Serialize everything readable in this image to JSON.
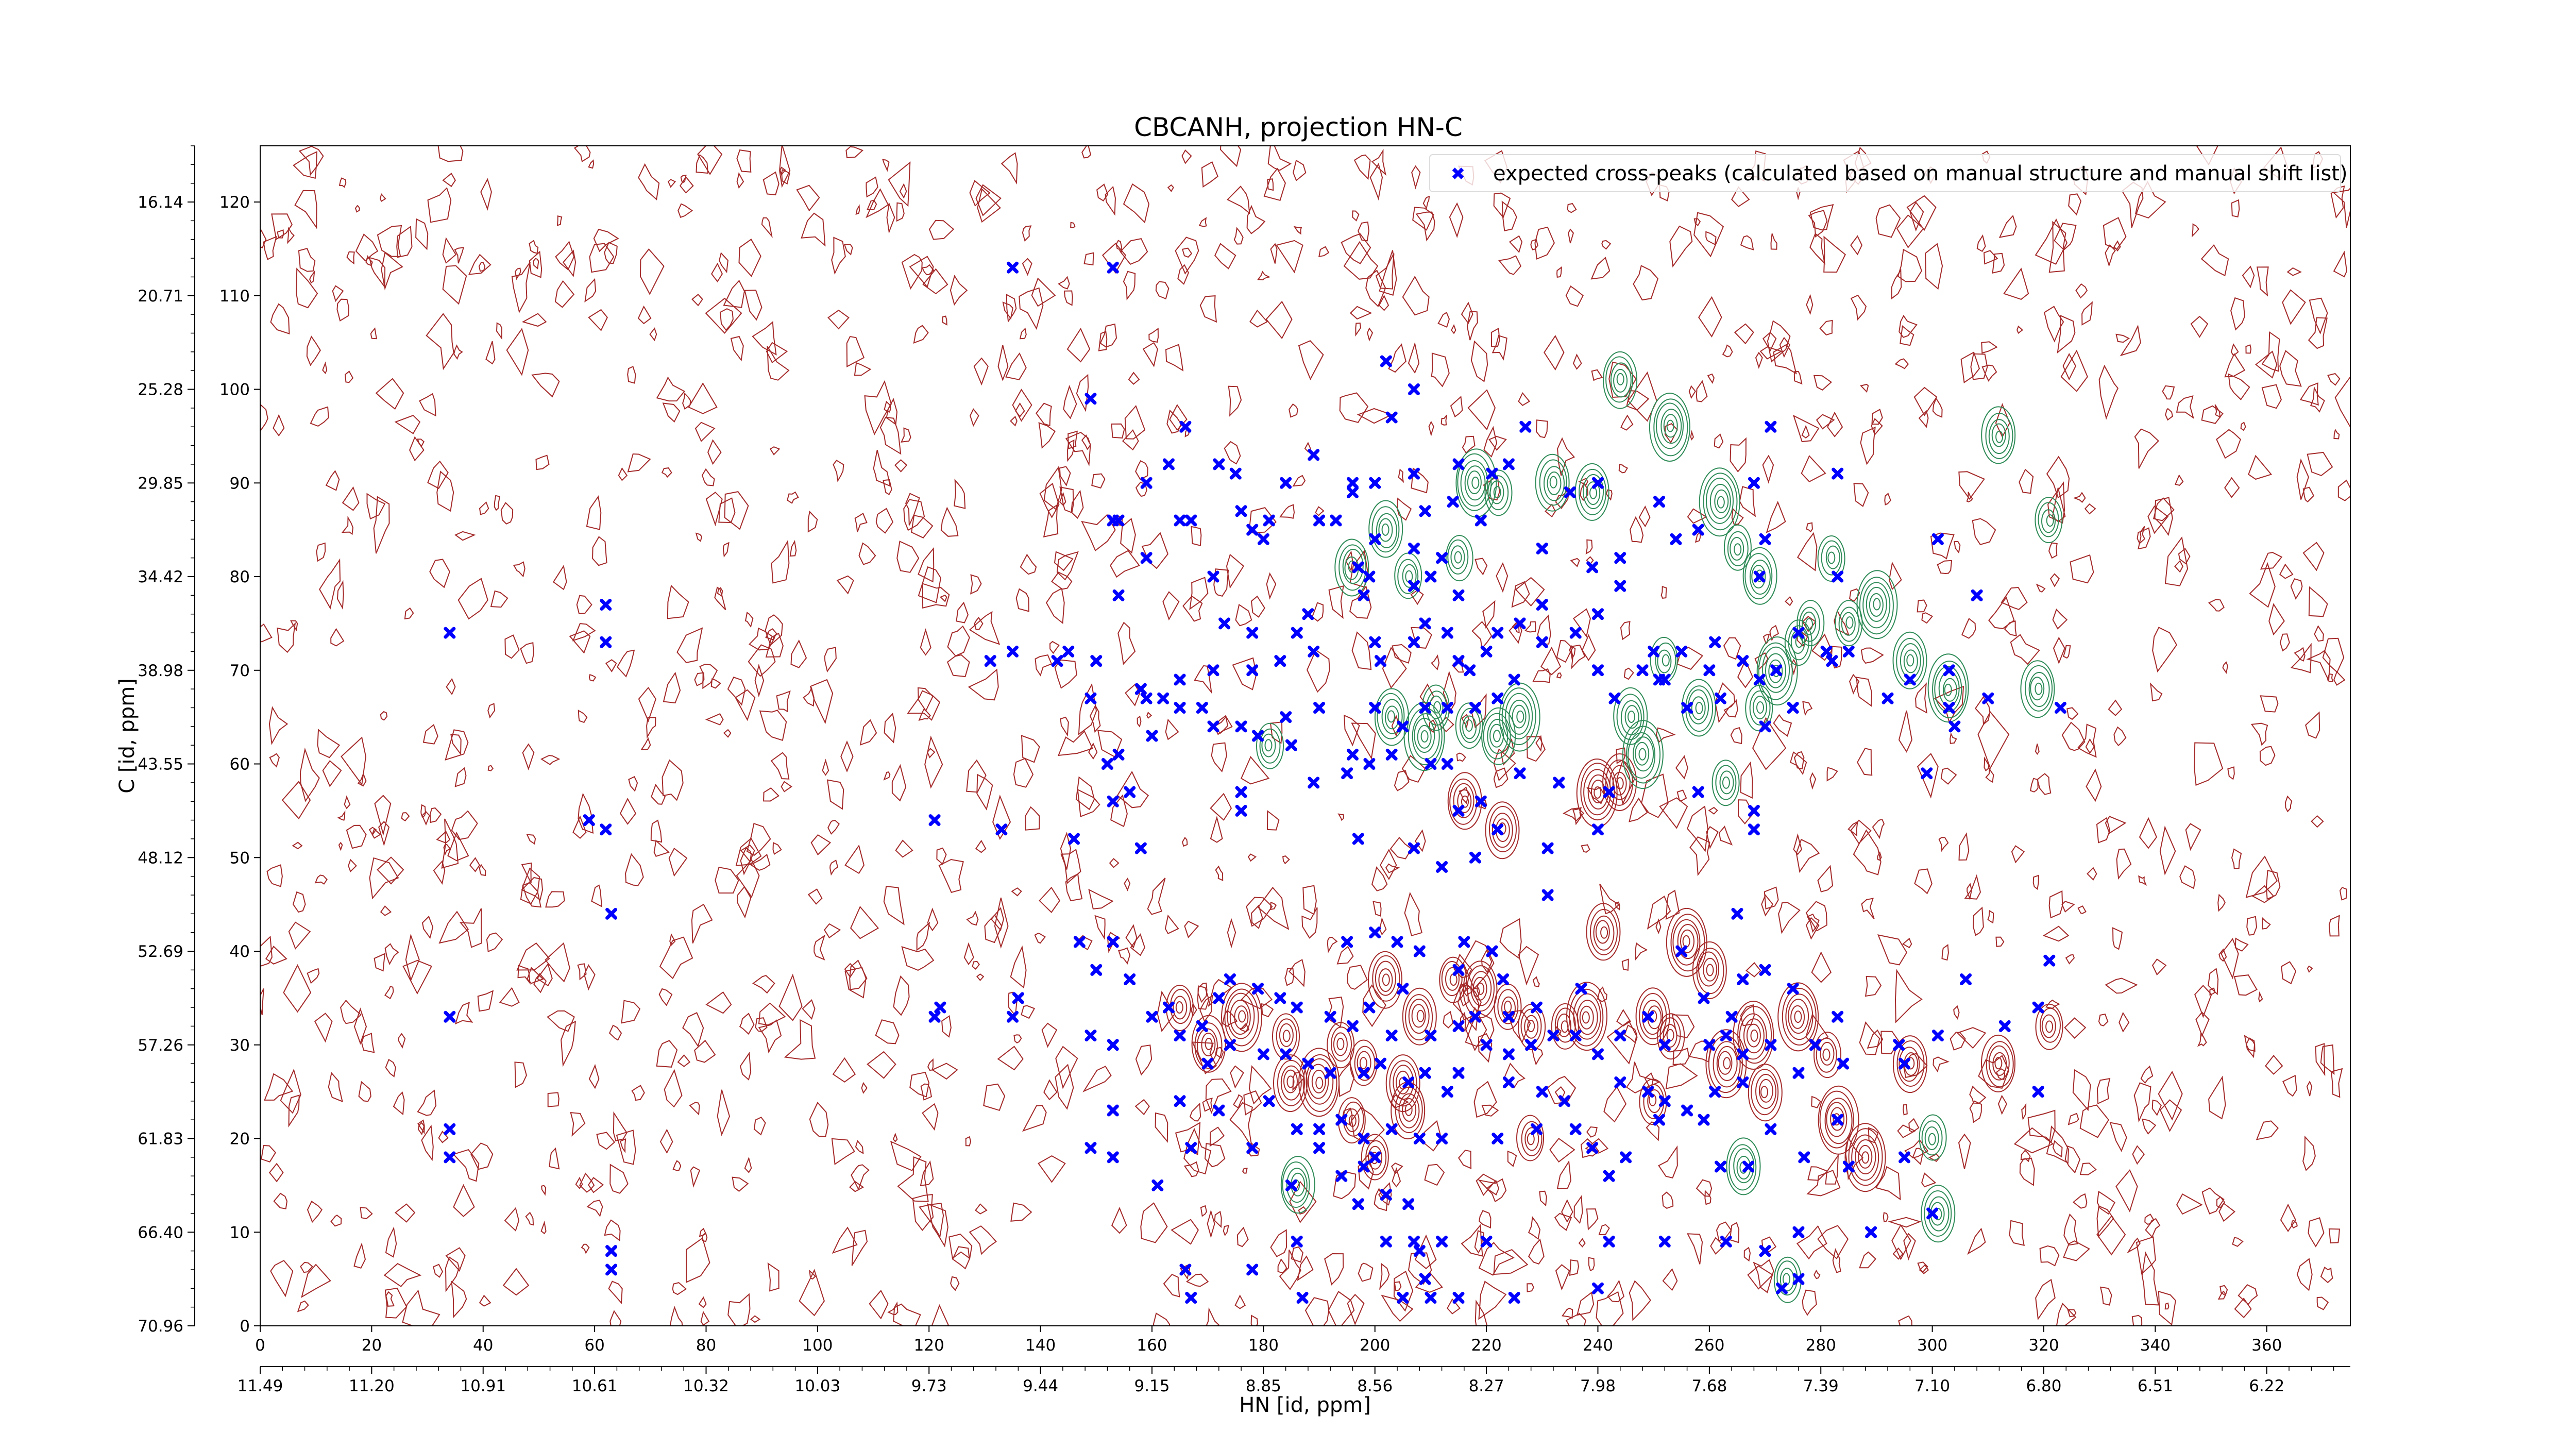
{
  "chart_data": {
    "type": "scatter",
    "title": "CBCANH, projection HN-C",
    "xlabel": "HN [id, ppm]",
    "ylabel": "C [id, ppm]",
    "x_index_range": [
      0,
      375
    ],
    "y_index_range": [
      0,
      126
    ],
    "x_index_ticks": [
      "0",
      "20",
      "40",
      "60",
      "80",
      "100",
      "120",
      "140",
      "160",
      "180",
      "200",
      "220",
      "240",
      "260",
      "280",
      "300",
      "320",
      "340",
      "360"
    ],
    "x_ppm_ticks": [
      "11.49",
      "11.20",
      "10.91",
      "10.61",
      "10.32",
      "10.03",
      "9.73",
      "9.44",
      "9.15",
      "8.85",
      "8.56",
      "8.27",
      "7.98",
      "7.68",
      "7.39",
      "7.10",
      "6.80",
      "6.51",
      "6.22"
    ],
    "y_index_ticks": [
      "0",
      "10",
      "20",
      "30",
      "40",
      "50",
      "60",
      "70",
      "80",
      "90",
      "100",
      "110",
      "120"
    ],
    "y_ppm_ticks": [
      "70.96",
      "66.40",
      "61.83",
      "57.26",
      "52.69",
      "48.12",
      "43.55",
      "38.98",
      "34.42",
      "29.85",
      "25.28",
      "20.71",
      "16.14"
    ],
    "legend": {
      "label": "expected cross-peaks (calculated based on manual structure and manual shift list)",
      "placement": "top-right"
    },
    "colors": {
      "points": "#0000ff",
      "positive_contours": "#a52a2a",
      "negative_contours": "#2e8b57",
      "axis": "#000000"
    },
    "contours": {
      "positive_peaks": [
        [
          216,
          56
        ],
        [
          223,
          53
        ],
        [
          240,
          57
        ],
        [
          244,
          58
        ],
        [
          234,
          32
        ],
        [
          238,
          33
        ],
        [
          250,
          33
        ],
        [
          253,
          31
        ],
        [
          263,
          28
        ],
        [
          270,
          25
        ],
        [
          276,
          33
        ],
        [
          281,
          29
        ],
        [
          283,
          22
        ],
        [
          288,
          18
        ],
        [
          296,
          28
        ],
        [
          312,
          28
        ],
        [
          321,
          32
        ],
        [
          241,
          42
        ],
        [
          256,
          41
        ],
        [
          260,
          38
        ],
        [
          268,
          31
        ],
        [
          202,
          37
        ],
        [
          208,
          33
        ],
        [
          214,
          37
        ],
        [
          219,
          36
        ],
        [
          224,
          34
        ],
        [
          228,
          32
        ],
        [
          194,
          30
        ],
        [
          198,
          28
        ],
        [
          205,
          26
        ],
        [
          184,
          31
        ],
        [
          190,
          26
        ],
        [
          196,
          22
        ],
        [
          200,
          18
        ],
        [
          206,
          23
        ],
        [
          176,
          33
        ],
        [
          170,
          30
        ],
        [
          165,
          34
        ],
        [
          185,
          26
        ],
        [
          228,
          20
        ],
        [
          250,
          24
        ]
      ],
      "negative_peaks": [
        [
          244,
          101
        ],
        [
          253,
          96
        ],
        [
          262,
          88
        ],
        [
          265,
          83
        ],
        [
          269,
          80
        ],
        [
          252,
          71
        ],
        [
          258,
          66
        ],
        [
          263,
          58
        ],
        [
          266,
          17
        ],
        [
          274,
          5
        ],
        [
          282,
          82
        ],
        [
          290,
          77
        ],
        [
          296,
          71
        ],
        [
          303,
          68
        ],
        [
          319,
          68
        ],
        [
          321,
          86
        ],
        [
          300,
          20
        ],
        [
          301,
          12
        ],
        [
          218,
          90
        ],
        [
          222,
          89
        ],
        [
          232,
          90
        ],
        [
          239,
          89
        ],
        [
          215,
          82
        ],
        [
          196,
          81
        ],
        [
          206,
          80
        ],
        [
          202,
          85
        ],
        [
          211,
          66
        ],
        [
          217,
          64
        ],
        [
          222,
          63
        ],
        [
          226,
          65
        ],
        [
          203,
          65
        ],
        [
          209,
          63
        ],
        [
          181,
          62
        ],
        [
          248,
          61
        ],
        [
          246,
          65
        ],
        [
          269,
          66
        ],
        [
          272,
          70
        ],
        [
          276,
          73
        ],
        [
          278,
          75
        ],
        [
          285,
          75
        ],
        [
          312,
          95
        ],
        [
          186,
          15
        ]
      ],
      "noise_seed": 7
    },
    "points": [
      [
        135,
        113
      ],
      [
        153,
        113
      ],
      [
        149,
        99
      ],
      [
        202,
        103
      ],
      [
        207,
        100
      ],
      [
        203,
        97
      ],
      [
        166,
        96
      ],
      [
        227,
        96
      ],
      [
        271,
        96
      ],
      [
        159,
        90
      ],
      [
        163,
        92
      ],
      [
        172,
        92
      ],
      [
        175,
        91
      ],
      [
        184,
        90
      ],
      [
        189,
        93
      ],
      [
        196,
        90
      ],
      [
        200,
        90
      ],
      [
        207,
        91
      ],
      [
        214,
        88
      ],
      [
        215,
        92
      ],
      [
        221,
        91
      ],
      [
        224,
        92
      ],
      [
        235,
        89
      ],
      [
        240,
        90
      ],
      [
        251,
        88
      ],
      [
        268,
        90
      ],
      [
        283,
        91
      ],
      [
        196,
        89
      ],
      [
        153,
        86
      ],
      [
        154,
        86
      ],
      [
        165,
        86
      ],
      [
        167,
        86
      ],
      [
        176,
        87
      ],
      [
        178,
        85
      ],
      [
        180,
        84
      ],
      [
        181,
        86
      ],
      [
        190,
        86
      ],
      [
        193,
        86
      ],
      [
        200,
        84
      ],
      [
        207,
        83
      ],
      [
        209,
        87
      ],
      [
        219,
        86
      ],
      [
        258,
        85
      ],
      [
        254,
        84
      ],
      [
        270,
        84
      ],
      [
        301,
        84
      ],
      [
        212,
        82
      ],
      [
        230,
        83
      ],
      [
        244,
        82
      ],
      [
        159,
        82
      ],
      [
        197,
        81
      ],
      [
        199,
        80
      ],
      [
        210,
        80
      ],
      [
        207,
        79
      ],
      [
        171,
        80
      ],
      [
        244,
        79
      ],
      [
        154,
        78
      ],
      [
        269,
        80
      ],
      [
        283,
        80
      ],
      [
        198,
        78
      ],
      [
        215,
        78
      ],
      [
        240,
        76
      ],
      [
        239,
        81
      ],
      [
        236,
        74
      ],
      [
        281,
        72
      ],
      [
        308,
        78
      ],
      [
        62,
        77
      ],
      [
        173,
        75
      ],
      [
        188,
        76
      ],
      [
        178,
        74
      ],
      [
        186,
        74
      ],
      [
        200,
        73
      ],
      [
        209,
        75
      ],
      [
        213,
        74
      ],
      [
        215,
        71
      ],
      [
        222,
        74
      ],
      [
        226,
        75
      ],
      [
        230,
        73
      ],
      [
        230,
        77
      ],
      [
        255,
        72
      ],
      [
        261,
        73
      ],
      [
        266,
        71
      ],
      [
        276,
        74
      ],
      [
        285,
        72
      ],
      [
        34,
        74
      ],
      [
        62,
        73
      ],
      [
        131,
        71
      ],
      [
        135,
        72
      ],
      [
        143,
        71
      ],
      [
        145,
        72
      ],
      [
        150,
        71
      ],
      [
        159,
        67
      ],
      [
        165,
        69
      ],
      [
        171,
        70
      ],
      [
        178,
        70
      ],
      [
        183,
        71
      ],
      [
        189,
        72
      ],
      [
        201,
        71
      ],
      [
        207,
        73
      ],
      [
        217,
        70
      ],
      [
        220,
        72
      ],
      [
        225,
        69
      ],
      [
        240,
        70
      ],
      [
        248,
        70
      ],
      [
        250,
        72
      ],
      [
        252,
        69
      ],
      [
        260,
        70
      ],
      [
        269,
        69
      ],
      [
        272,
        70
      ],
      [
        282,
        71
      ],
      [
        296,
        69
      ],
      [
        303,
        70
      ],
      [
        149,
        67
      ],
      [
        158,
        68
      ],
      [
        162,
        67
      ],
      [
        165,
        66
      ],
      [
        169,
        66
      ],
      [
        184,
        65
      ],
      [
        190,
        66
      ],
      [
        200,
        66
      ],
      [
        205,
        64
      ],
      [
        209,
        66
      ],
      [
        213,
        66
      ],
      [
        218,
        66
      ],
      [
        222,
        67
      ],
      [
        243,
        67
      ],
      [
        251,
        69
      ],
      [
        256,
        66
      ],
      [
        262,
        67
      ],
      [
        270,
        64
      ],
      [
        275,
        66
      ],
      [
        292,
        67
      ],
      [
        303,
        66
      ],
      [
        310,
        67
      ],
      [
        323,
        66
      ],
      [
        304,
        64
      ],
      [
        160,
        63
      ],
      [
        171,
        64
      ],
      [
        176,
        64
      ],
      [
        179,
        63
      ],
      [
        185,
        62
      ],
      [
        196,
        61
      ],
      [
        199,
        60
      ],
      [
        203,
        61
      ],
      [
        210,
        60
      ],
      [
        213,
        60
      ],
      [
        226,
        59
      ],
      [
        233,
        58
      ],
      [
        242,
        57
      ],
      [
        258,
        57
      ],
      [
        268,
        55
      ],
      [
        299,
        59
      ],
      [
        153,
        56
      ],
      [
        152,
        60
      ],
      [
        154,
        61
      ],
      [
        156,
        57
      ],
      [
        176,
        57
      ],
      [
        176,
        55
      ],
      [
        189,
        58
      ],
      [
        195,
        59
      ],
      [
        215,
        55
      ],
      [
        219,
        56
      ],
      [
        222,
        53
      ],
      [
        231,
        51
      ],
      [
        240,
        53
      ],
      [
        268,
        53
      ],
      [
        59,
        54
      ],
      [
        62,
        53
      ],
      [
        121,
        54
      ],
      [
        133,
        53
      ],
      [
        146,
        52
      ],
      [
        158,
        51
      ],
      [
        197,
        52
      ],
      [
        207,
        51
      ],
      [
        212,
        49
      ],
      [
        218,
        50
      ],
      [
        231,
        46
      ],
      [
        265,
        44
      ],
      [
        63,
        44
      ],
      [
        147,
        41
      ],
      [
        153,
        41
      ],
      [
        195,
        41
      ],
      [
        200,
        42
      ],
      [
        204,
        41
      ],
      [
        208,
        40
      ],
      [
        215,
        38
      ],
      [
        216,
        41
      ],
      [
        221,
        40
      ],
      [
        223,
        37
      ],
      [
        229,
        34
      ],
      [
        237,
        36
      ],
      [
        255,
        40
      ],
      [
        259,
        35
      ],
      [
        266,
        37
      ],
      [
        270,
        38
      ],
      [
        264,
        33
      ],
      [
        275,
        36
      ],
      [
        283,
        33
      ],
      [
        306,
        37
      ],
      [
        313,
        32
      ],
      [
        321,
        39
      ],
      [
        150,
        38
      ],
      [
        156,
        37
      ],
      [
        163,
        34
      ],
      [
        172,
        35
      ],
      [
        174,
        37
      ],
      [
        179,
        36
      ],
      [
        183,
        35
      ],
      [
        186,
        34
      ],
      [
        192,
        33
      ],
      [
        196,
        32
      ],
      [
        199,
        34
      ],
      [
        203,
        31
      ],
      [
        205,
        36
      ],
      [
        210,
        31
      ],
      [
        215,
        32
      ],
      [
        218,
        33
      ],
      [
        220,
        30
      ],
      [
        224,
        29
      ],
      [
        224,
        33
      ],
      [
        228,
        30
      ],
      [
        232,
        31
      ],
      [
        236,
        31
      ],
      [
        240,
        29
      ],
      [
        244,
        31
      ],
      [
        249,
        33
      ],
      [
        252,
        30
      ],
      [
        260,
        30
      ],
      [
        263,
        31
      ],
      [
        266,
        29
      ],
      [
        271,
        30
      ],
      [
        279,
        30
      ],
      [
        294,
        30
      ],
      [
        301,
        31
      ],
      [
        319,
        34
      ],
      [
        34,
        33
      ],
      [
        121,
        33
      ],
      [
        122,
        34
      ],
      [
        135,
        33
      ],
      [
        136,
        35
      ],
      [
        149,
        31
      ],
      [
        153,
        30
      ],
      [
        160,
        33
      ],
      [
        165,
        31
      ],
      [
        169,
        32
      ],
      [
        170,
        28
      ],
      [
        174,
        30
      ],
      [
        180,
        29
      ],
      [
        184,
        29
      ],
      [
        188,
        28
      ],
      [
        192,
        27
      ],
      [
        198,
        27
      ],
      [
        201,
        28
      ],
      [
        206,
        26
      ],
      [
        209,
        27
      ],
      [
        213,
        25
      ],
      [
        215,
        27
      ],
      [
        224,
        26
      ],
      [
        230,
        25
      ],
      [
        234,
        24
      ],
      [
        244,
        26
      ],
      [
        249,
        25
      ],
      [
        252,
        24
      ],
      [
        256,
        23
      ],
      [
        261,
        25
      ],
      [
        266,
        26
      ],
      [
        276,
        27
      ],
      [
        284,
        28
      ],
      [
        295,
        28
      ],
      [
        319,
        25
      ],
      [
        153,
        23
      ],
      [
        165,
        24
      ],
      [
        172,
        23
      ],
      [
        181,
        24
      ],
      [
        186,
        21
      ],
      [
        190,
        21
      ],
      [
        194,
        22
      ],
      [
        198,
        20
      ],
      [
        200,
        18
      ],
      [
        203,
        21
      ],
      [
        208,
        20
      ],
      [
        212,
        20
      ],
      [
        222,
        20
      ],
      [
        229,
        21
      ],
      [
        236,
        21
      ],
      [
        251,
        22
      ],
      [
        259,
        22
      ],
      [
        271,
        21
      ],
      [
        283,
        22
      ],
      [
        34,
        21
      ],
      [
        34,
        18
      ],
      [
        149,
        19
      ],
      [
        153,
        18
      ],
      [
        167,
        19
      ],
      [
        178,
        19
      ],
      [
        190,
        19
      ],
      [
        194,
        16
      ],
      [
        198,
        17
      ],
      [
        202,
        14
      ],
      [
        206,
        13
      ],
      [
        197,
        13
      ],
      [
        161,
        15
      ],
      [
        185,
        15
      ],
      [
        239,
        19
      ],
      [
        242,
        16
      ],
      [
        245,
        18
      ],
      [
        262,
        17
      ],
      [
        277,
        18
      ],
      [
        285,
        17
      ],
      [
        295,
        18
      ],
      [
        267,
        17
      ],
      [
        186,
        9
      ],
      [
        202,
        9
      ],
      [
        207,
        9
      ],
      [
        208,
        8
      ],
      [
        212,
        9
      ],
      [
        220,
        9
      ],
      [
        242,
        9
      ],
      [
        252,
        9
      ],
      [
        263,
        9
      ],
      [
        270,
        8
      ],
      [
        276,
        10
      ],
      [
        289,
        10
      ],
      [
        300,
        12
      ],
      [
        63,
        8
      ],
      [
        63,
        6
      ],
      [
        166,
        6
      ],
      [
        178,
        6
      ],
      [
        209,
        5
      ],
      [
        215,
        3
      ],
      [
        205,
        3
      ],
      [
        210,
        3
      ],
      [
        167,
        3
      ],
      [
        187,
        3
      ],
      [
        225,
        3
      ],
      [
        240,
        4
      ],
      [
        273,
        4
      ],
      [
        276,
        5
      ]
    ]
  }
}
